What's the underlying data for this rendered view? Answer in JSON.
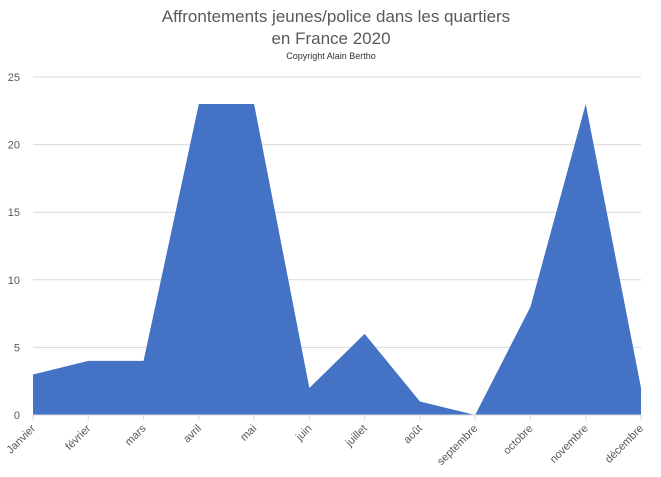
{
  "chart_data": {
    "type": "area",
    "title": [
      "Affrontements jeunes/police dans les quartiers",
      "en France 2020"
    ],
    "subtitle": "Copyright Alain Bertho",
    "categories": [
      "Janvier",
      "février",
      "mars",
      "avril",
      "mai",
      "juin",
      "juillet",
      "août",
      "septembre",
      "octobre",
      "novembre",
      "décembre"
    ],
    "values": [
      3,
      4,
      4,
      23,
      23,
      2,
      6,
      1,
      0,
      8,
      23,
      2
    ],
    "color": "#4472c4",
    "ylim": [
      0,
      25
    ],
    "yticks": [
      0,
      5,
      10,
      15,
      20,
      25
    ],
    "grid": true
  }
}
